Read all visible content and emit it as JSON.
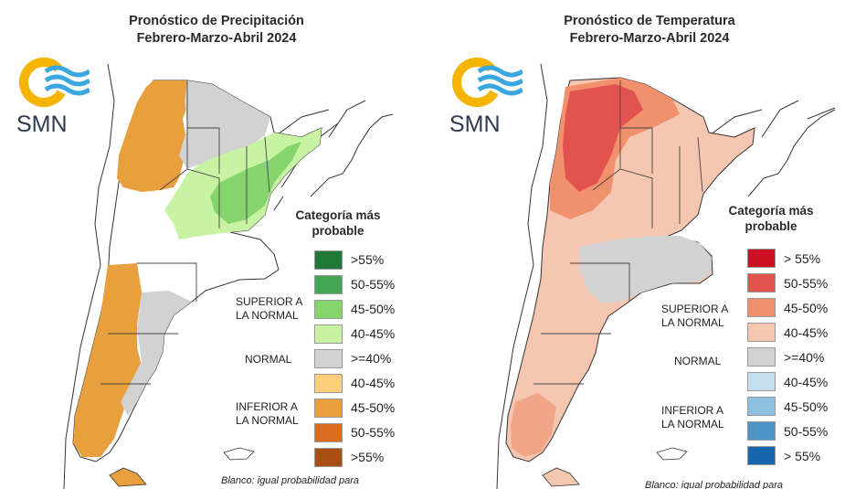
{
  "left": {
    "title_line1": "Pronóstico de Precipitación",
    "title_line2": "Febrero-Marzo-Abril 2024",
    "logo_text": "SMN",
    "legend_title": "Categoría más probable",
    "legend_items": [
      {
        "label": ">55%",
        "color": "#1e7a36"
      },
      {
        "label": "50-55%",
        "color": "#45a755"
      },
      {
        "label": "45-50%",
        "color": "#86d56c"
      },
      {
        "label": "40-45%",
        "color": "#c8f3a3"
      },
      {
        "label": ">=40%",
        "color": "#d2d2d2"
      },
      {
        "label": "40-45%",
        "color": "#fdcf7a"
      },
      {
        "label": "45-50%",
        "color": "#e89f3d"
      },
      {
        "label": "50-55%",
        "color": "#dc6d1f"
      },
      {
        "label": ">55%",
        "color": "#a84e14"
      }
    ],
    "group_upper": [
      "SUPERIOR A",
      "LA NORMAL"
    ],
    "group_normal": "NORMAL",
    "group_lower": [
      "INFERIOR A",
      "LA NORMAL"
    ],
    "note": "Blanco: igual probabilidad para"
  },
  "right": {
    "title_line1": "Pronóstico de Temperatura",
    "title_line2": "Febrero-Marzo-Abril 2024",
    "logo_text": "SMN",
    "legend_title": "Categoría más probable",
    "legend_items": [
      {
        "label": "> 55%",
        "color": "#cc0f22"
      },
      {
        "label": "50-55%",
        "color": "#e2534f"
      },
      {
        "label": "45-50%",
        "color": "#f0906d"
      },
      {
        "label": "40-45%",
        "color": "#f6c7b0"
      },
      {
        "label": ">=40%",
        "color": "#d2d2d2"
      },
      {
        "label": "40-45%",
        "color": "#c4def0"
      },
      {
        "label": "45-50%",
        "color": "#8cbfe0"
      },
      {
        "label": "50-55%",
        "color": "#4d94c9"
      },
      {
        "label": "> 55%",
        "color": "#1566ad"
      }
    ],
    "group_upper": [
      "SUPERIOR A",
      "LA NORMAL"
    ],
    "group_normal": "NORMAL",
    "group_lower": [
      "INFERIOR A",
      "LA NORMAL"
    ],
    "note": "Blanco: igual probabilidad para"
  }
}
